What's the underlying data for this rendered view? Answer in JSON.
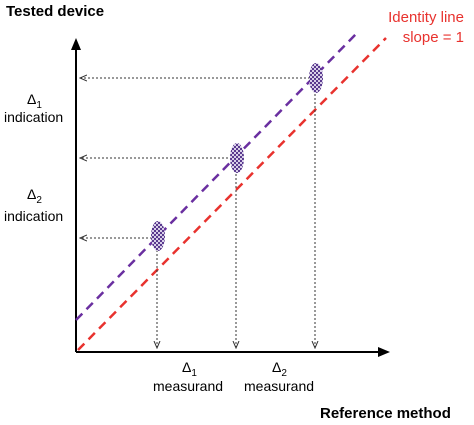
{
  "y_axis_title": "Tested device",
  "x_axis_title": "Reference method",
  "identity_label": {
    "line1": "Identity line",
    "line2": "slope = 1"
  },
  "delta1_indication": {
    "symbol": "Δ",
    "sub": "1",
    "text": "indication"
  },
  "delta2_indication": {
    "symbol": "Δ",
    "sub": "2",
    "text": "indication"
  },
  "delta1_measurand": {
    "symbol": "Δ",
    "sub": "1",
    "text": "measurand"
  },
  "delta2_measurand": {
    "symbol": "Δ",
    "sub": "2",
    "text": "measurand"
  },
  "colors": {
    "identity_line": "#e8322e",
    "regression_line": "#6a2fa0",
    "marker_dark": "#5a3a8e",
    "marker_light": "#d8cfe8",
    "axis": "#000000",
    "guide": "#333333"
  }
}
